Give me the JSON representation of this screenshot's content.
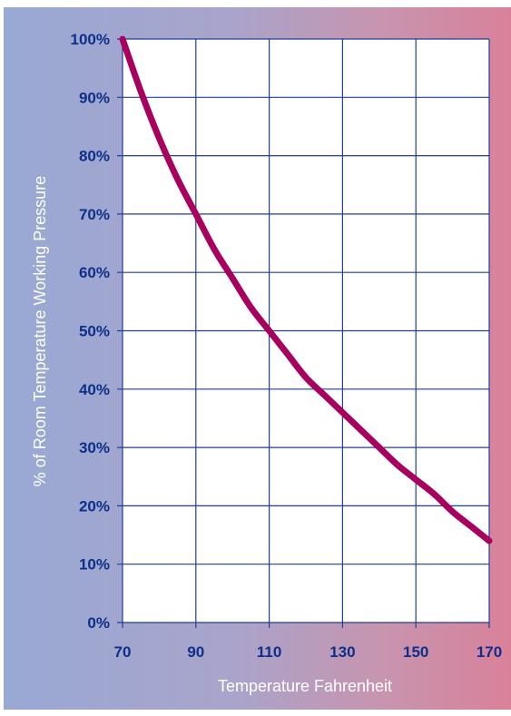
{
  "chart_data": {
    "type": "line",
    "title": "",
    "xlabel": "Temperature Fahrenheit",
    "ylabel": "% of Room Temperature Working Pressure",
    "xlim": [
      70,
      170
    ],
    "ylim": [
      0,
      100
    ],
    "x_ticks": [
      70,
      90,
      110,
      130,
      150,
      170
    ],
    "y_ticks": [
      0,
      10,
      20,
      30,
      40,
      50,
      60,
      70,
      80,
      90,
      100
    ],
    "y_tick_suffix": "%",
    "grid": true,
    "series": [
      {
        "x": [
          70,
          75,
          80,
          85,
          90,
          95,
          100,
          105,
          110,
          115,
          120,
          125,
          130,
          135,
          140,
          145,
          150,
          155,
          160,
          165,
          170
        ],
        "y": [
          100,
          91,
          83,
          76,
          70,
          64,
          59,
          54,
          50,
          46,
          42,
          39,
          36,
          33,
          30,
          27,
          24.5,
          22,
          19,
          16.5,
          14
        ],
        "color": "#a8005e"
      }
    ]
  }
}
